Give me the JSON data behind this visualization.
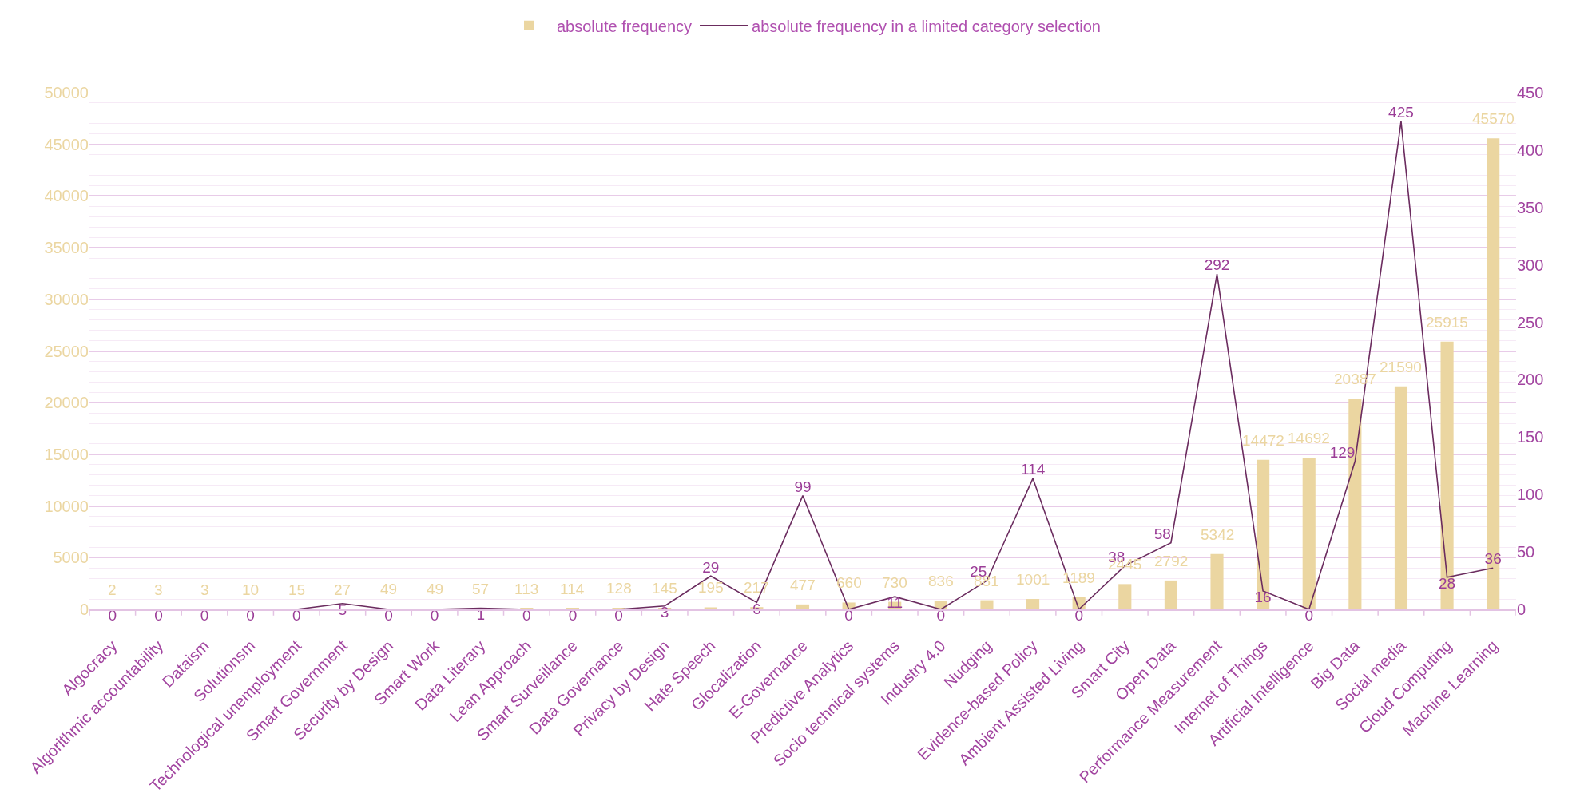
{
  "chart_data": {
    "type": "bar",
    "categories": [
      "Algocracy",
      "Algorithmic accountability",
      "Dataism",
      "Solutionsm",
      "Technological unemployment",
      "Smart Government",
      "Security by Design",
      "Smart Work",
      "Data Literary",
      "Lean Approach",
      "Smart Surveillance",
      "Data Governance",
      "Privacy by Design",
      "Hate Speech",
      "Glocalization",
      "E-Governance",
      "Predictive Analytics",
      "Socio technical systems",
      "Industry 4.0",
      "Nudging",
      "Evidence-based Policy",
      "Ambient Assisted Living",
      "Smart City",
      "Open Data",
      "Performance Measurement",
      "Internet of Things",
      "Artificial Intelligence",
      "Big Data",
      "Social media",
      "Cloud Computing",
      "Machine Learning"
    ],
    "series": [
      {
        "name": "absolute frequency",
        "color": "#ebd6a1",
        "values": [
          2,
          3,
          3,
          10,
          15,
          27,
          49,
          49,
          57,
          113,
          114,
          128,
          145,
          195,
          217,
          477,
          660,
          730,
          836,
          881,
          1001,
          1189,
          2445,
          2792,
          5342,
          14472,
          14692,
          20387,
          21590,
          25915,
          45570
        ]
      },
      {
        "name": "absolute frequency in a limited category selection",
        "type": "line",
        "axis": "y2",
        "color": "#6b2c5f",
        "values": [
          0,
          0,
          0,
          0,
          0,
          5,
          0,
          0,
          1,
          0,
          0,
          0,
          3,
          29,
          6,
          99,
          0,
          11,
          0,
          25,
          114,
          0,
          38,
          58,
          292,
          16,
          0,
          129,
          425,
          28,
          36
        ]
      }
    ],
    "ylim": [
      0,
      50000
    ],
    "yticks": [
      0,
      5000,
      10000,
      15000,
      20000,
      25000,
      30000,
      35000,
      40000,
      45000,
      50000
    ],
    "y2lim": [
      0,
      450
    ],
    "y2ticks": [
      0,
      50,
      100,
      150,
      200,
      250,
      300,
      350,
      400,
      450
    ],
    "grid": "y",
    "legend": "top",
    "data_labels": true
  }
}
